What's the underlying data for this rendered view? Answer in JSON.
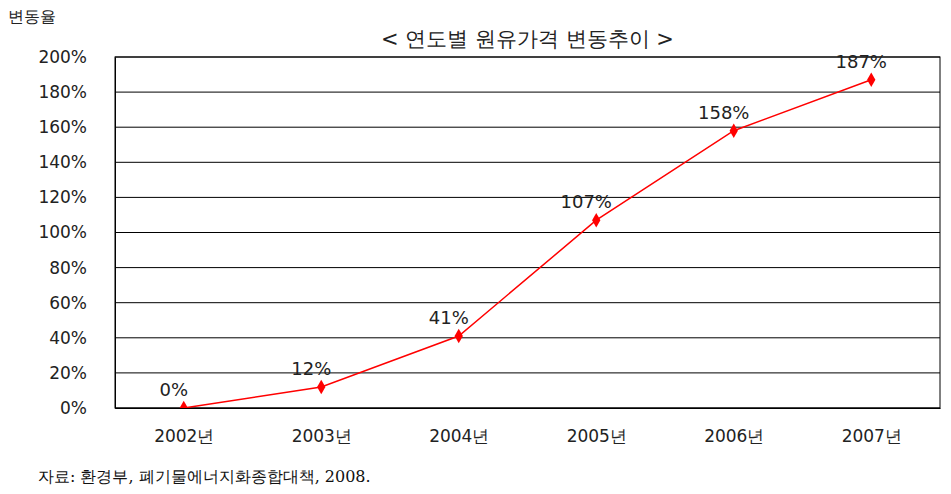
{
  "chart_data": {
    "type": "line",
    "title": "< 연도별 원유가격 변동추이 >",
    "ylabel": "변동율",
    "source": "자료: 환경부, 폐기물에너지화종합대책, 2008.",
    "categories": [
      "2002년",
      "2003년",
      "2004년",
      "2005년",
      "2006년",
      "2007년"
    ],
    "values": [
      0,
      12,
      41,
      107,
      158,
      187
    ],
    "value_labels": [
      "0%",
      "12%",
      "41%",
      "107%",
      "158%",
      "187%"
    ],
    "color": "#ff0000",
    "marker": "diamond",
    "line_style": "solid",
    "data_labels": true,
    "grid": true,
    "ylim": [
      0,
      200
    ],
    "yticks": [
      {
        "value": 0,
        "label": "0%"
      },
      {
        "value": 20,
        "label": "20%"
      },
      {
        "value": 40,
        "label": "40%"
      },
      {
        "value": 60,
        "label": "60%"
      },
      {
        "value": 80,
        "label": "80%"
      },
      {
        "value": 100,
        "label": "100%"
      },
      {
        "value": 120,
        "label": "120%"
      },
      {
        "value": 140,
        "label": "140%"
      },
      {
        "value": 160,
        "label": "160%"
      },
      {
        "value": 180,
        "label": "180%"
      },
      {
        "value": 200,
        "label": "200%"
      }
    ]
  }
}
